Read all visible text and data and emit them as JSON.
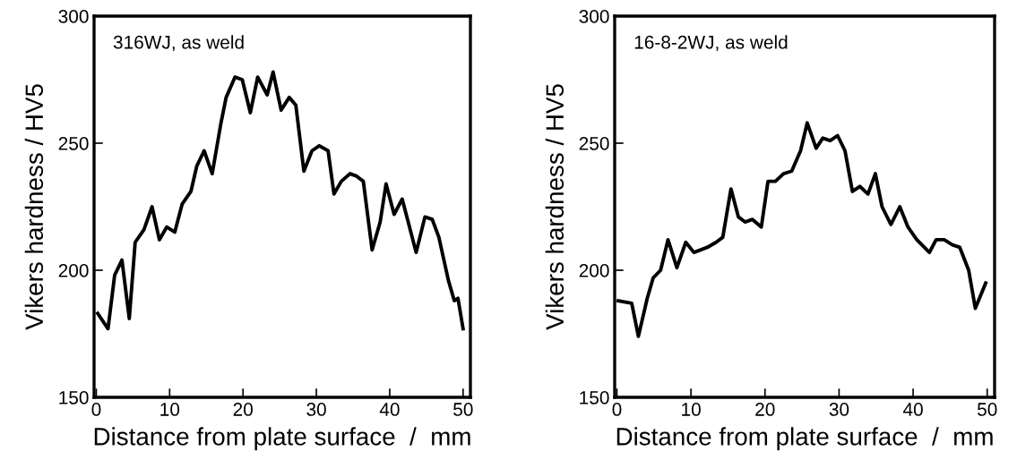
{
  "chart_data": [
    {
      "type": "line",
      "xlabel": "Distance from plate surface  /  mm",
      "ylabel": "Vikers hardness / HV5",
      "annotations": [
        "316WJ, as weld"
      ],
      "xlim": [
        -0.3,
        51
      ],
      "xticks": [
        0,
        10,
        20,
        30,
        40,
        50
      ],
      "ylim": [
        150,
        300
      ],
      "yticks": [
        150,
        200,
        250,
        300
      ],
      "grid": false,
      "legend": false,
      "series": [
        {
          "color": "#000000",
          "x": [
            0.2,
            1.6,
            2.5,
            3.5,
            4.5,
            5.3,
            6.5,
            7.6,
            8.6,
            9.6,
            10.7,
            11.7,
            12.9,
            13.7,
            14.7,
            15.8,
            17.0,
            17.7,
            18.9,
            19.9,
            21.0,
            22.0,
            23.3,
            24.1,
            25.2,
            26.3,
            27.2,
            28.3,
            29.4,
            30.4,
            31.6,
            32.4,
            33.4,
            34.6,
            35.5,
            36.4,
            37.6,
            38.7,
            39.5,
            40.6,
            41.7,
            42.7,
            43.6,
            44.8,
            45.8,
            46.7,
            48.0,
            48.8,
            49.3,
            50.0
          ],
          "values": [
            183,
            177,
            198,
            204,
            181,
            211,
            216,
            225,
            212,
            217,
            215,
            226,
            231,
            241,
            247,
            238,
            258,
            268,
            276,
            275,
            262,
            276,
            269,
            278,
            263,
            268,
            265,
            239,
            247,
            249,
            247,
            230,
            235,
            238,
            237,
            235,
            208,
            219,
            234,
            222,
            228,
            217,
            207,
            221,
            220,
            213,
            196,
            188,
            189,
            177
          ]
        }
      ]
    },
    {
      "type": "line",
      "xlabel": "Distance from plate surface  /  mm",
      "ylabel": "Vikers hardness / HV5",
      "annotations": [
        "16-8-2WJ, as weld"
      ],
      "xlim": [
        -0.3,
        51
      ],
      "xticks": [
        0,
        10,
        20,
        30,
        40,
        50
      ],
      "ylim": [
        150,
        300
      ],
      "yticks": [
        150,
        200,
        250,
        300
      ],
      "grid": false,
      "legend": false,
      "series": [
        {
          "color": "#000000",
          "x": [
            0.2,
            2.0,
            2.9,
            4.1,
            4.9,
            5.9,
            6.9,
            8.1,
            9.3,
            10.4,
            12.2,
            13.4,
            14.3,
            15.4,
            16.4,
            17.3,
            18.3,
            19.5,
            20.4,
            21.4,
            22.5,
            23.6,
            24.8,
            25.7,
            26.9,
            27.8,
            28.8,
            29.8,
            30.8,
            31.8,
            32.8,
            33.9,
            34.9,
            35.8,
            37.0,
            38.2,
            39.3,
            40.5,
            42.2,
            43.1,
            44.2,
            45.3,
            46.3,
            47.5,
            48.4,
            49.8
          ],
          "values": [
            188,
            187,
            174,
            189,
            197,
            200,
            212,
            201,
            211,
            207,
            209,
            211,
            213,
            232,
            221,
            219,
            220,
            217,
            235,
            235,
            238,
            239,
            247,
            258,
            248,
            252,
            251,
            253,
            247,
            231,
            233,
            230,
            238,
            225,
            218,
            225,
            217,
            212,
            207,
            212,
            212,
            210,
            209,
            200,
            185,
            195
          ]
        }
      ]
    }
  ]
}
